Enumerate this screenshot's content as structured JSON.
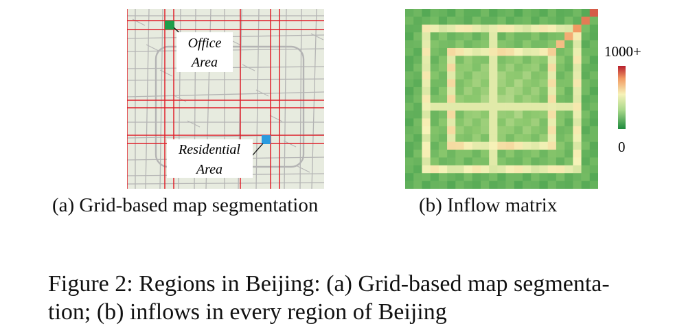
{
  "map": {
    "callouts": {
      "office": {
        "line1": "Office",
        "line2": "Area"
      },
      "residential": {
        "line1": "Residential",
        "line2": "Area"
      }
    },
    "caption": "(a) Grid-based map segmentation",
    "colors": {
      "background": "#e7ebdf",
      "roads": "#b4b4b4",
      "grid_lines": "#e0202a",
      "office_cell": "#1e9e4a",
      "residential_cell": "#2a9be0"
    }
  },
  "heatmap": {
    "caption": "(b) Inflow matrix",
    "legend": {
      "max_label": "1000+",
      "min_label": "0"
    },
    "colors": {
      "low": "#1e8a3c",
      "mid": "#f6f2b8",
      "high": "#b71e2e"
    }
  },
  "figure_caption": {
    "line1": "Figure 2: Regions in Beijing: (a) Grid-based map segmenta-",
    "line2": "tion; (b) inflows in every region of Beijing"
  }
}
